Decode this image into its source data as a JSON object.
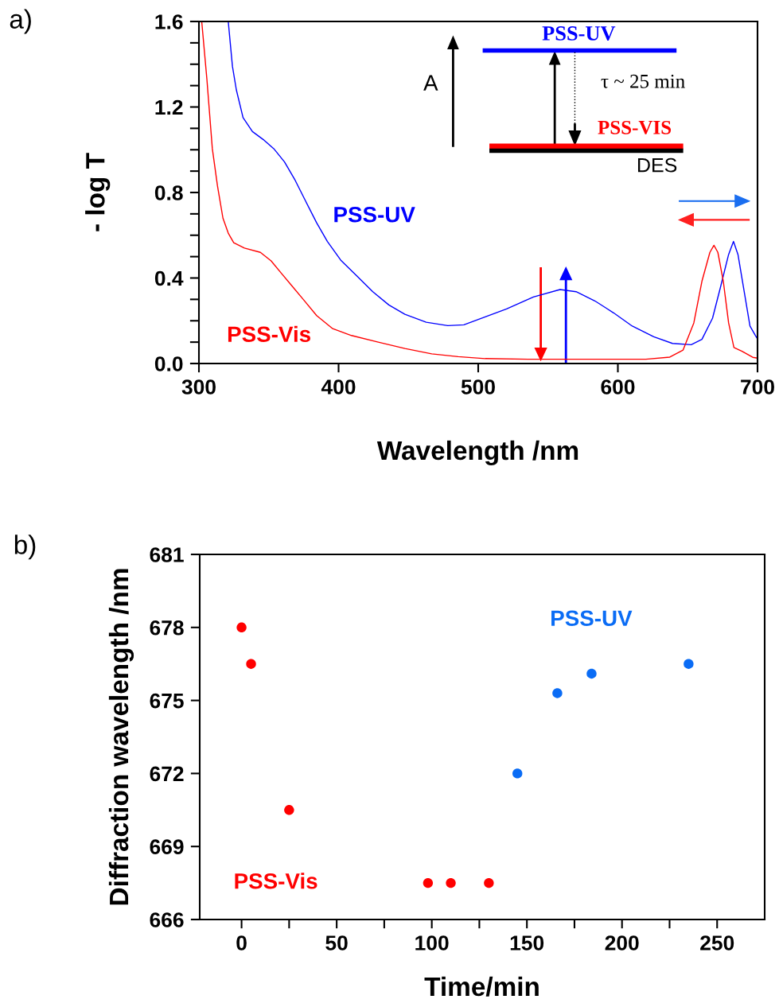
{
  "chart_data": [
    {
      "type": "line",
      "xlabel": "Wavelength /nm",
      "ylabel": "- log T",
      "xlim": [
        300,
        700
      ],
      "xticks": [
        300,
        400,
        500,
        600,
        700
      ],
      "ylim": [
        0,
        1.6
      ],
      "yticks": [
        {
          "value": 0,
          "label": "0.0"
        },
        {
          "value": 0.1,
          "label": null
        },
        {
          "value": 0.2,
          "label": null
        },
        {
          "value": 0.3,
          "label": null
        },
        {
          "value": 0.4,
          "label": "0.4"
        },
        {
          "value": 0.5,
          "label": null
        },
        {
          "value": 0.6,
          "label": null
        },
        {
          "value": 0.7,
          "label": null
        },
        {
          "value": 0.8,
          "label": "0.8"
        },
        {
          "value": 0.9,
          "label": null
        },
        {
          "value": 1.0,
          "label": null
        },
        {
          "value": 1.1,
          "label": null
        },
        {
          "value": 1.2,
          "label": "1.2"
        },
        {
          "value": 1.3,
          "label": null
        },
        {
          "value": 1.4,
          "label": null
        },
        {
          "value": 1.5,
          "label": null
        },
        {
          "value": 1.6,
          "label": "1.6"
        }
      ],
      "grid": false,
      "legend": false,
      "marker": "none",
      "line_style": "solid",
      "annotations": [
        "a)",
        "A",
        "PSS-UV",
        "τ ~ 25 min",
        "PSS-VIS",
        "DES"
      ],
      "series": [
        {
          "name": "PSS-UV",
          "color": "#0000ff",
          "x": [
            321,
            324,
            326.8,
            331.6,
            338.3,
            346,
            353.6,
            361.3,
            369,
            376.6,
            384.3,
            392,
            401.5,
            413,
            424.5,
            436,
            447.5,
            462.8,
            478.2,
            489.7,
            505,
            520.3,
            539.5,
            558.6,
            570.1,
            583.5,
            596.9,
            610.3,
            625.7,
            639.1,
            652.5,
            660.2,
            667.8,
            673.6,
            679.3,
            682.8,
            686,
            690.8,
            694.6,
            698.5,
            700
          ],
          "values": [
            1.6,
            1.39,
            1.28,
            1.15,
            1.085,
            1.048,
            1.005,
            0.943,
            0.856,
            0.757,
            0.658,
            0.571,
            0.484,
            0.41,
            0.336,
            0.274,
            0.23,
            0.193,
            0.177,
            0.181,
            0.218,
            0.255,
            0.311,
            0.346,
            0.336,
            0.293,
            0.237,
            0.175,
            0.125,
            0.094,
            0.088,
            0.113,
            0.212,
            0.36,
            0.51,
            0.571,
            0.51,
            0.323,
            0.175,
            0.131,
            0.115
          ]
        },
        {
          "name": "PSS-Vis",
          "color": "#ff0000",
          "x": [
            302,
            305.7,
            309.6,
            313.3,
            317.2,
            321,
            324.9,
            332.6,
            344,
            351.7,
            359.3,
            367,
            374.7,
            384.3,
            395.8,
            409.2,
            428.4,
            447.5,
            466.7,
            485.6,
            505,
            535.6,
            560,
            590,
            620,
            637.2,
            646.7,
            654.4,
            660.2,
            665.9,
            668.8,
            671.6,
            675.5,
            679.3,
            683.1,
            688.9,
            696.6,
            700
          ],
          "values": [
            1.6,
            1.33,
            1.005,
            0.83,
            0.68,
            0.61,
            0.565,
            0.54,
            0.52,
            0.48,
            0.42,
            0.36,
            0.3,
            0.224,
            0.163,
            0.131,
            0.1,
            0.07,
            0.045,
            0.032,
            0.023,
            0.02,
            0.02,
            0.02,
            0.02,
            0.03,
            0.063,
            0.19,
            0.385,
            0.52,
            0.553,
            0.52,
            0.385,
            0.19,
            0.075,
            0.057,
            0.029,
            0.025
          ]
        }
      ]
    },
    {
      "type": "scatter",
      "xlabel": "Time/min",
      "ylabel": "Diffraction wavelength /nm",
      "xlim": [
        -22,
        275
      ],
      "xticks": [
        0,
        {
          "value": 25,
          "label": null
        },
        50,
        {
          "value": 75,
          "label": null
        },
        100,
        {
          "value": 125,
          "label": null
        },
        150,
        {
          "value": 175,
          "label": null
        },
        200,
        {
          "value": 225,
          "label": null
        },
        250
      ],
      "ylim": [
        666,
        681
      ],
      "yticks": [
        666,
        669,
        672,
        675,
        678,
        681
      ],
      "grid": false,
      "legend": false,
      "marker": "circle",
      "annotations": [
        "b)"
      ],
      "series": [
        {
          "name": "PSS-Vis",
          "color": "#ff0000",
          "x": [
            0,
            5,
            25,
            98,
            110,
            130
          ],
          "values": [
            678,
            676.5,
            670.5,
            667.5,
            667.5,
            667.5
          ]
        },
        {
          "name": "PSS-UV",
          "color": "#0a6cf5",
          "x": [
            145,
            166,
            184,
            235
          ],
          "values": [
            672,
            675.3,
            676.1,
            676.5
          ]
        }
      ]
    }
  ]
}
